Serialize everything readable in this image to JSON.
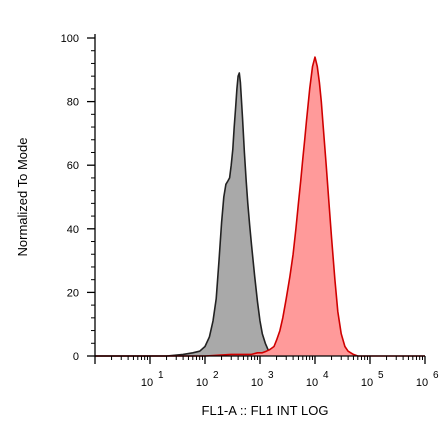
{
  "chart_data": {
    "type": "area",
    "xlabel": "FL1-A :: FL1 INT LOG",
    "ylabel": "Normalized To Mode",
    "x_scale": "log",
    "xlim": [
      1,
      1000000
    ],
    "ylim": [
      0,
      100
    ],
    "x_ticks": [
      {
        "base": "10",
        "exp": "1"
      },
      {
        "base": "10",
        "exp": "2"
      },
      {
        "base": "10",
        "exp": "3"
      },
      {
        "base": "10",
        "exp": "4"
      },
      {
        "base": "10",
        "exp": "5"
      },
      {
        "base": "10",
        "exp": "6"
      }
    ],
    "y_ticks": [
      "0",
      "20",
      "40",
      "60",
      "80",
      "100"
    ],
    "grid": false,
    "series": [
      {
        "fill": "#a9a9a9",
        "stroke": "#222222",
        "x": [
          1,
          10,
          20,
          40,
          60,
          80,
          100,
          120,
          140,
          160,
          180,
          200,
          220,
          240,
          260,
          280,
          300,
          320,
          340,
          360,
          380,
          400,
          420,
          440,
          480,
          520,
          560,
          600,
          650,
          700,
          800,
          900,
          1000,
          1100,
          1250,
          1400,
          1600,
          1800,
          2000,
          2500,
          3000
        ],
        "y": [
          0,
          0,
          0,
          0.5,
          1,
          1.5,
          3,
          6,
          11,
          18,
          30,
          42,
          50,
          54,
          55,
          56,
          60,
          65,
          72,
          78,
          84,
          88,
          89,
          86,
          75,
          64,
          55,
          48,
          41,
          35,
          25,
          17,
          11,
          7,
          4,
          2,
          1,
          0.5,
          0,
          0,
          0
        ]
      },
      {
        "fill": "#ff9a9a",
        "stroke": "#d00000",
        "x": [
          1,
          100,
          300,
          500,
          700,
          900,
          1100,
          1300,
          1500,
          1800,
          2000,
          2300,
          2600,
          3000,
          3500,
          4000,
          4500,
          5000,
          5500,
          6000,
          6500,
          7000,
          7500,
          8000,
          9000,
          10000,
          11000,
          12000,
          13000,
          14000,
          16000,
          18000,
          20000,
          23000,
          26000,
          30000,
          35000,
          40000,
          50000,
          60000,
          80000,
          100000,
          200000,
          1000000
        ],
        "y": [
          0,
          0,
          0.5,
          0.5,
          0.5,
          1,
          1,
          1.5,
          2,
          3,
          5,
          8,
          12,
          18,
          25,
          32,
          40,
          48,
          55,
          62,
          68,
          74,
          79,
          84,
          91,
          94,
          91,
          86,
          80,
          73,
          60,
          48,
          37,
          24,
          14,
          7,
          3,
          1.5,
          0.5,
          0,
          0,
          0,
          0,
          0
        ]
      }
    ]
  }
}
